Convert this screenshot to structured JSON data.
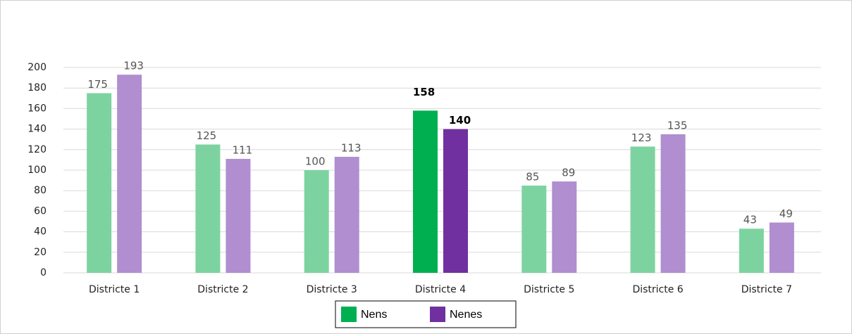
{
  "chart_data": {
    "type": "bar",
    "categories": [
      "Districte 1",
      "Districte 2",
      "Districte 3",
      "Districte 4",
      "Districte 5",
      "Districte 6",
      "Districte 7"
    ],
    "series": [
      {
        "name": "Nens",
        "color": "#00b050",
        "faded_color": "#7dd3a0",
        "values": [
          175,
          125,
          100,
          158,
          85,
          123,
          43
        ]
      },
      {
        "name": "Nenes",
        "color": "#7030a0",
        "faded_color": "#b08ed0",
        "values": [
          193,
          111,
          113,
          140,
          89,
          135,
          49
        ]
      }
    ],
    "highlight": "Districte 4",
    "ylim": [
      0,
      200
    ],
    "yticks": [
      0,
      20,
      40,
      60,
      80,
      100,
      120,
      140,
      160,
      180,
      200
    ],
    "grid": true
  }
}
